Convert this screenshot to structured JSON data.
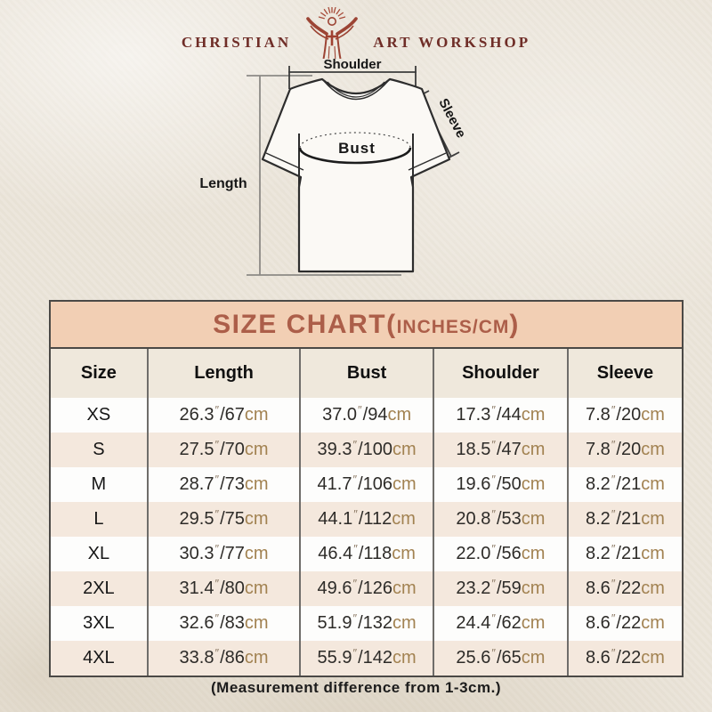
{
  "logo": {
    "left": "CHRISTIAN",
    "right": "ART WORKSHOP"
  },
  "diagram": {
    "shoulder_label": "Shoulder",
    "sleeve_label": "Sleeve",
    "bust_label": "Bust",
    "length_label": "Length"
  },
  "size_chart": {
    "title_main": "SIZE CHART(",
    "title_units": "INCHES/CM",
    "title_close": ")",
    "columns": [
      "Size",
      "Length",
      "Bust",
      "Shoulder",
      "Sleeve"
    ],
    "inch_symbol": "″",
    "separator": "/",
    "cm_suffix": "cm",
    "rows": [
      {
        "size": "XS",
        "measures": [
          {
            "inches": "26.3",
            "cm": "67"
          },
          {
            "inches": "37.0",
            "cm": "94"
          },
          {
            "inches": "17.3",
            "cm": "44"
          },
          {
            "inches": "7.8",
            "cm": "20"
          }
        ]
      },
      {
        "size": "S",
        "measures": [
          {
            "inches": "27.5",
            "cm": "70"
          },
          {
            "inches": "39.3",
            "cm": "100"
          },
          {
            "inches": "18.5",
            "cm": "47"
          },
          {
            "inches": "7.8",
            "cm": "20"
          }
        ]
      },
      {
        "size": "M",
        "measures": [
          {
            "inches": "28.7",
            "cm": "73"
          },
          {
            "inches": "41.7",
            "cm": "106"
          },
          {
            "inches": "19.6",
            "cm": "50"
          },
          {
            "inches": "8.2",
            "cm": "21"
          }
        ]
      },
      {
        "size": "L",
        "measures": [
          {
            "inches": "29.5",
            "cm": "75"
          },
          {
            "inches": "44.1",
            "cm": "112"
          },
          {
            "inches": "20.8",
            "cm": "53"
          },
          {
            "inches": "8.2",
            "cm": "21"
          }
        ]
      },
      {
        "size": "XL",
        "measures": [
          {
            "inches": "30.3",
            "cm": "77"
          },
          {
            "inches": "46.4",
            "cm": "118"
          },
          {
            "inches": "22.0",
            "cm": "56"
          },
          {
            "inches": "8.2",
            "cm": "21"
          }
        ]
      },
      {
        "size": "2XL",
        "measures": [
          {
            "inches": "31.4",
            "cm": "80"
          },
          {
            "inches": "49.6",
            "cm": "126"
          },
          {
            "inches": "23.2",
            "cm": "59"
          },
          {
            "inches": "8.6",
            "cm": "22"
          }
        ]
      },
      {
        "size": "3XL",
        "measures": [
          {
            "inches": "32.6",
            "cm": "83"
          },
          {
            "inches": "51.9",
            "cm": "132"
          },
          {
            "inches": "24.4",
            "cm": "62"
          },
          {
            "inches": "8.6",
            "cm": "22"
          }
        ]
      },
      {
        "size": "4XL",
        "measures": [
          {
            "inches": "33.8",
            "cm": "86"
          },
          {
            "inches": "55.9",
            "cm": "142"
          },
          {
            "inches": "25.6",
            "cm": "65"
          },
          {
            "inches": "8.6",
            "cm": "22"
          }
        ]
      }
    ]
  },
  "footer": {
    "note": "(Measurement difference from 1-3cm.)"
  },
  "colors": {
    "accent_title": "#ac5e49",
    "title_bar_bg": "#f2cfb4",
    "header_row_bg": "#efe8dc",
    "row_bg": "#fdfdfc",
    "row_alt_bg": "#f4e8dd",
    "cm_text": "#a28251",
    "logo_red": "#9c4434",
    "border_dark": "#4b4946",
    "page_bg": "#ebe5da"
  },
  "chart_data": {
    "type": "table",
    "title": "SIZE CHART(INCHES/CM)",
    "columns": [
      "Size",
      "Length",
      "Bust",
      "Shoulder",
      "Sleeve"
    ],
    "rows": [
      [
        "XS",
        "26.3\"/67cm",
        "37.0\"/94cm",
        "17.3\"/44cm",
        "7.8\"/20cm"
      ],
      [
        "S",
        "27.5\"/70cm",
        "39.3\"/100cm",
        "18.5\"/47cm",
        "7.8\"/20cm"
      ],
      [
        "M",
        "28.7\"/73cm",
        "41.7\"/106cm",
        "19.6\"/50cm",
        "8.2\"/21cm"
      ],
      [
        "L",
        "29.5\"/75cm",
        "44.1\"/112cm",
        "20.8\"/53cm",
        "8.2\"/21cm"
      ],
      [
        "XL",
        "30.3\"/77cm",
        "46.4\"/118cm",
        "22.0\"/56cm",
        "8.2\"/21cm"
      ],
      [
        "2XL",
        "31.4\"/80cm",
        "49.6\"/126cm",
        "23.2\"/59cm",
        "8.6\"/22cm"
      ],
      [
        "3XL",
        "32.6\"/83cm",
        "51.9\"/132cm",
        "24.4\"/62cm",
        "8.6\"/22cm"
      ],
      [
        "4XL",
        "33.8\"/86cm",
        "55.9\"/142cm",
        "25.6\"/65cm",
        "8.6\"/22cm"
      ]
    ],
    "note": "(Measurement difference from 1-3cm.)",
    "diagram_labels": [
      "Shoulder",
      "Sleeve",
      "Bust",
      "Length"
    ]
  }
}
